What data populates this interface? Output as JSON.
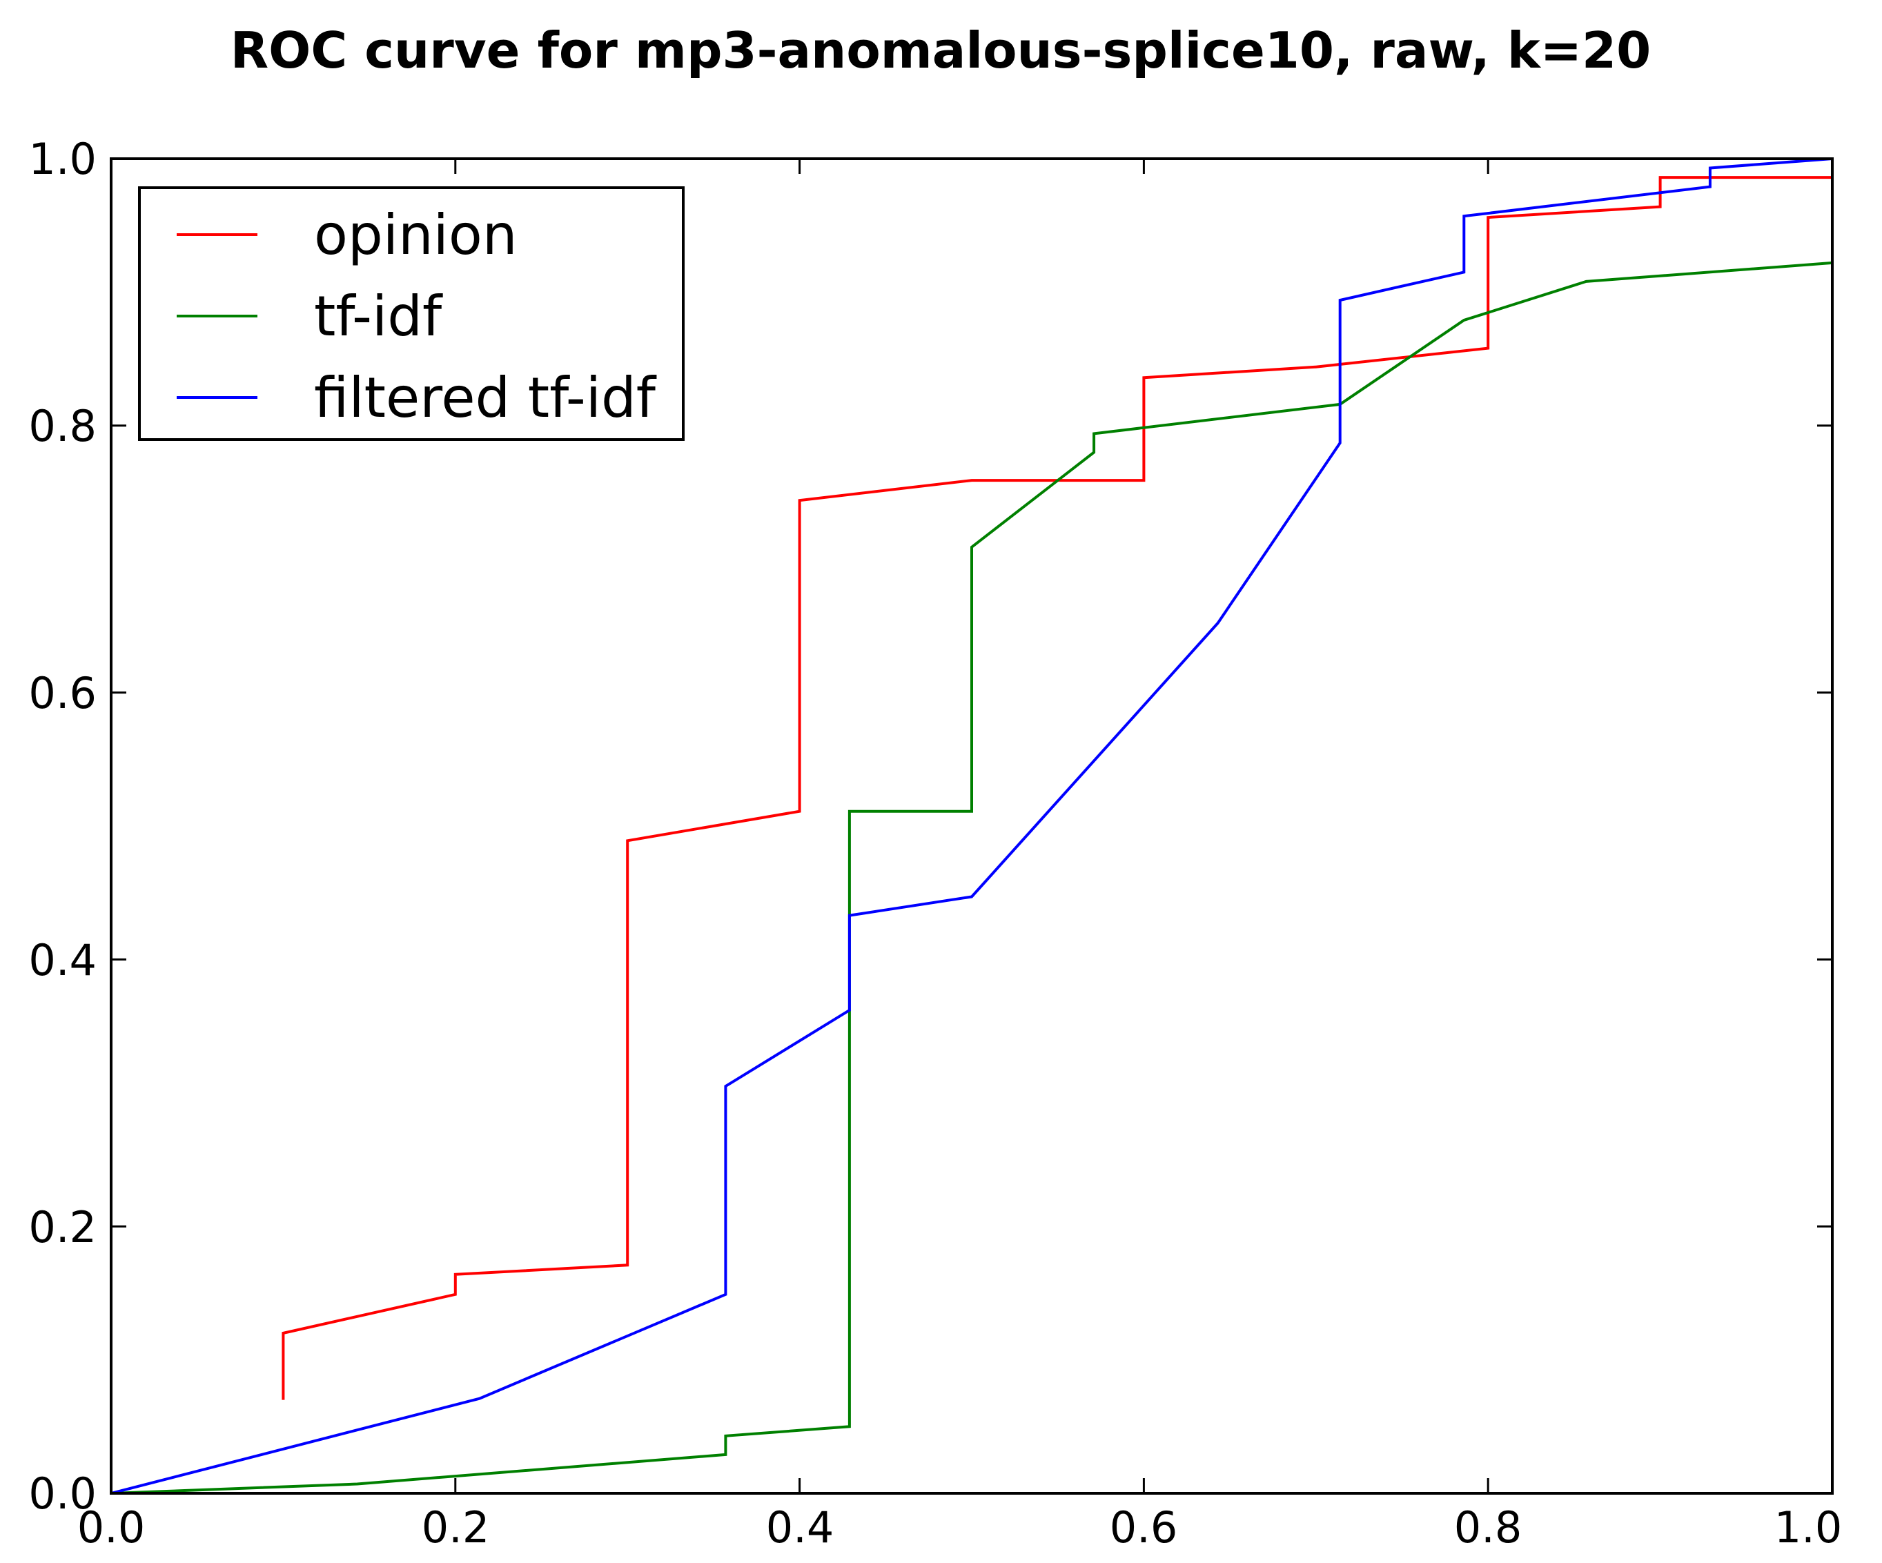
{
  "chart_data": {
    "type": "line",
    "title": "ROC curve for mp3-anomalous-splice10, raw, k=20",
    "xlabel": "",
    "ylabel": "",
    "xlim": [
      0.0,
      1.0
    ],
    "ylim": [
      0.0,
      1.0
    ],
    "xticks": [
      "0.0",
      "0.2",
      "0.4",
      "0.6",
      "0.8",
      "1.0"
    ],
    "yticks": [
      "0.0",
      "0.2",
      "0.4",
      "0.6",
      "0.8",
      "1.0"
    ],
    "grid": false,
    "legend_position": "top-left",
    "series": [
      {
        "name": "opinion",
        "color": "#ff0000",
        "x": [
          0.1,
          0.1,
          0.2,
          0.2,
          0.3,
          0.3,
          0.4,
          0.4,
          0.5,
          0.6,
          0.6,
          0.7,
          0.8,
          0.8,
          0.9,
          0.9,
          1.0
        ],
        "y": [
          0.07,
          0.12,
          0.149,
          0.164,
          0.171,
          0.489,
          0.511,
          0.744,
          0.759,
          0.759,
          0.836,
          0.844,
          0.858,
          0.956,
          0.964,
          0.986,
          0.986
        ]
      },
      {
        "name": "tf-idf",
        "color": "#008000",
        "x": [
          0.0,
          0.143,
          0.357,
          0.357,
          0.429,
          0.429,
          0.5,
          0.5,
          0.571,
          0.571,
          0.714,
          0.786,
          0.857,
          1.0
        ],
        "y": [
          0.0,
          0.007,
          0.029,
          0.043,
          0.05,
          0.511,
          0.511,
          0.709,
          0.78,
          0.794,
          0.816,
          0.879,
          0.908,
          0.922
        ]
      },
      {
        "name": "filtered tf-idf",
        "color": "#0000ff",
        "x": [
          0.0,
          0.214,
          0.357,
          0.357,
          0.429,
          0.429,
          0.5,
          0.643,
          0.714,
          0.714,
          0.786,
          0.786,
          0.929,
          0.929,
          1.0
        ],
        "y": [
          0.0,
          0.071,
          0.149,
          0.305,
          0.362,
          0.433,
          0.447,
          0.652,
          0.787,
          0.894,
          0.915,
          0.957,
          0.979,
          0.993,
          1.0
        ]
      }
    ]
  }
}
